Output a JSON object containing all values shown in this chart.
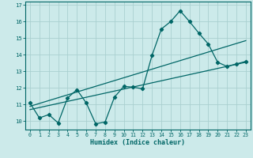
{
  "xlabel": "Humidex (Indice chaleur)",
  "ylabel": "",
  "bg_color": "#cceaea",
  "grid_color": "#aad0d0",
  "line_color": "#006666",
  "xlim": [
    -0.5,
    23.5
  ],
  "ylim": [
    9.5,
    17.2
  ],
  "xticks": [
    0,
    1,
    2,
    3,
    4,
    5,
    6,
    7,
    8,
    9,
    10,
    11,
    12,
    13,
    14,
    15,
    16,
    17,
    18,
    19,
    20,
    21,
    22,
    23
  ],
  "yticks": [
    10,
    11,
    12,
    13,
    14,
    15,
    16,
    17
  ],
  "main_x": [
    0,
    1,
    2,
    3,
    4,
    5,
    6,
    7,
    8,
    9,
    10,
    11,
    12,
    13,
    14,
    15,
    16,
    17,
    18,
    19,
    20,
    21,
    22,
    23
  ],
  "main_y": [
    11.1,
    10.2,
    10.4,
    9.9,
    11.4,
    11.9,
    11.1,
    9.85,
    9.95,
    11.45,
    12.1,
    12.05,
    11.95,
    13.95,
    15.55,
    16.0,
    16.65,
    16.0,
    15.3,
    14.65,
    13.55,
    13.3,
    13.45,
    13.6
  ],
  "reg_line1_x": [
    0,
    23
  ],
  "reg_line1_y": [
    10.7,
    13.55
  ],
  "reg_line2_x": [
    0,
    23
  ],
  "reg_line2_y": [
    10.9,
    14.85
  ]
}
